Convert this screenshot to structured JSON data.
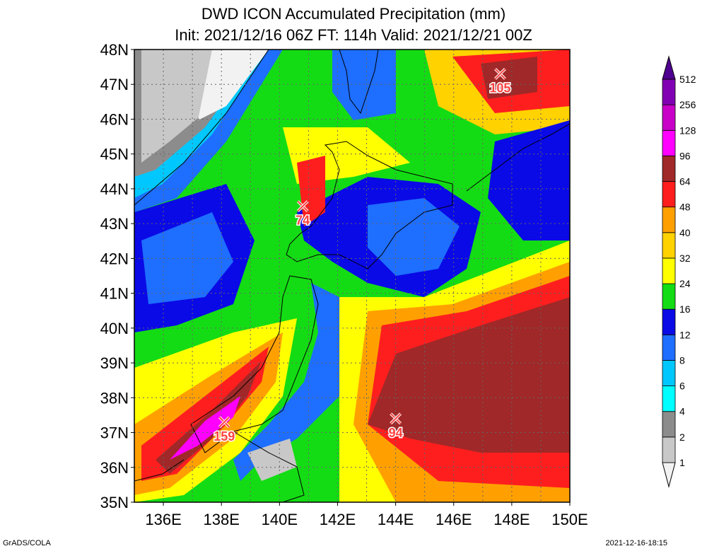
{
  "title": "DWD ICON Accumulated Precipitation (mm)",
  "subtitle": "Init: 2021/12/16 06Z  FT: 114h  Valid: 2021/12/21 00Z",
  "map": {
    "lon_range": [
      135,
      150
    ],
    "lat_range": [
      35,
      48
    ],
    "lat_labels": [
      "35N",
      "36N",
      "37N",
      "38N",
      "39N",
      "40N",
      "41N",
      "42N",
      "43N",
      "44N",
      "45N",
      "46N",
      "47N",
      "48N"
    ],
    "lon_labels": [
      {
        "lon": 136,
        "label": "136E"
      },
      {
        "lon": 138,
        "label": "138E"
      },
      {
        "lon": 140,
        "label": "140E"
      },
      {
        "lon": 142,
        "label": "142E"
      },
      {
        "lon": 144,
        "label": "144E"
      },
      {
        "lon": 146,
        "label": "146E"
      },
      {
        "lon": 148,
        "label": "148E"
      },
      {
        "lon": 150,
        "label": "150E"
      }
    ],
    "maxima": [
      {
        "lon": 138.1,
        "lat": 37.3,
        "label": "159"
      },
      {
        "lon": 140.8,
        "lat": 43.5,
        "label": "74"
      },
      {
        "lon": 144.0,
        "lat": 37.4,
        "label": "94"
      },
      {
        "lon": 147.6,
        "lat": 47.3,
        "label": "105"
      }
    ]
  },
  "colorbar": {
    "levels": [
      "1",
      "2",
      "4",
      "6",
      "8",
      "12",
      "16",
      "24",
      "32",
      "40",
      "48",
      "64",
      "96",
      "128",
      "256",
      "512"
    ],
    "colors": [
      "#f2f2f2",
      "#c8c8c8",
      "#8c8c8c",
      "#00ffff",
      "#00c8ff",
      "#1e6eff",
      "#0a0ae6",
      "#14dc14",
      "#ffff00",
      "#ffd200",
      "#ffa000",
      "#ff1e1e",
      "#a02828",
      "#ff00ff",
      "#c800c8",
      "#8200b4",
      "#500090"
    ]
  },
  "marker_color": "#ff4040",
  "footer_left": "GrADS/COLA",
  "footer_right": "2021-12-16-18:15"
}
